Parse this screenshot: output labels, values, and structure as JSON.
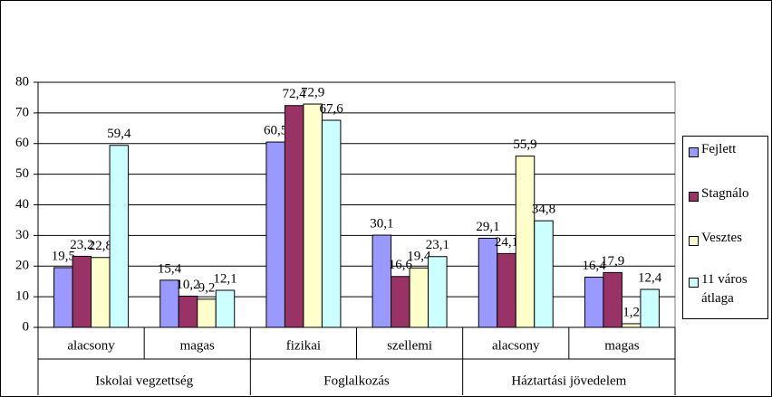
{
  "chart_data": {
    "type": "bar",
    "groups": [
      {
        "label": "Iskolai vegzettség",
        "categories": [
          "alacsony",
          "magas"
        ]
      },
      {
        "label": "Foglalkozás",
        "categories": [
          "fizikai",
          "szellemi"
        ]
      },
      {
        "label": "Háztartási jövedelem",
        "categories": [
          "alacsony",
          "magas"
        ]
      }
    ],
    "series": [
      {
        "name": "Fejlett",
        "color": "#9999ff",
        "values": [
          19.5,
          15.4,
          60.5,
          30.1,
          29.1,
          16.4
        ],
        "value_labels": [
          "19,5",
          "15,4",
          "60,5",
          "30,1",
          "29,1",
          "16,4"
        ]
      },
      {
        "name": "Stagnálo",
        "color": "#993366",
        "values": [
          23.2,
          10.2,
          72.4,
          16.6,
          24.1,
          17.9
        ],
        "value_labels": [
          "23,2",
          "10,2",
          "72,4",
          "16,6",
          "24,1",
          "17,9"
        ]
      },
      {
        "name": "Vesztes",
        "color": "#ffffcc",
        "values": [
          22.8,
          9.2,
          72.9,
          19.4,
          55.9,
          1.2
        ],
        "value_labels": [
          "22,8",
          "9,2",
          "72,9",
          "19,4",
          "55,9",
          "1,2"
        ]
      },
      {
        "name": "11 város átlaga",
        "color": "#ccffff",
        "values": [
          59.4,
          12.1,
          67.6,
          23.1,
          34.8,
          12.4
        ],
        "value_labels": [
          "59,4",
          "12,1",
          "67,6",
          "23,1",
          "34,8",
          "12,4"
        ]
      }
    ],
    "ylim": [
      0,
      80
    ],
    "yticks": [
      0,
      10,
      20,
      30,
      40,
      50,
      60,
      70,
      80
    ],
    "grid": true,
    "legend": "right"
  }
}
